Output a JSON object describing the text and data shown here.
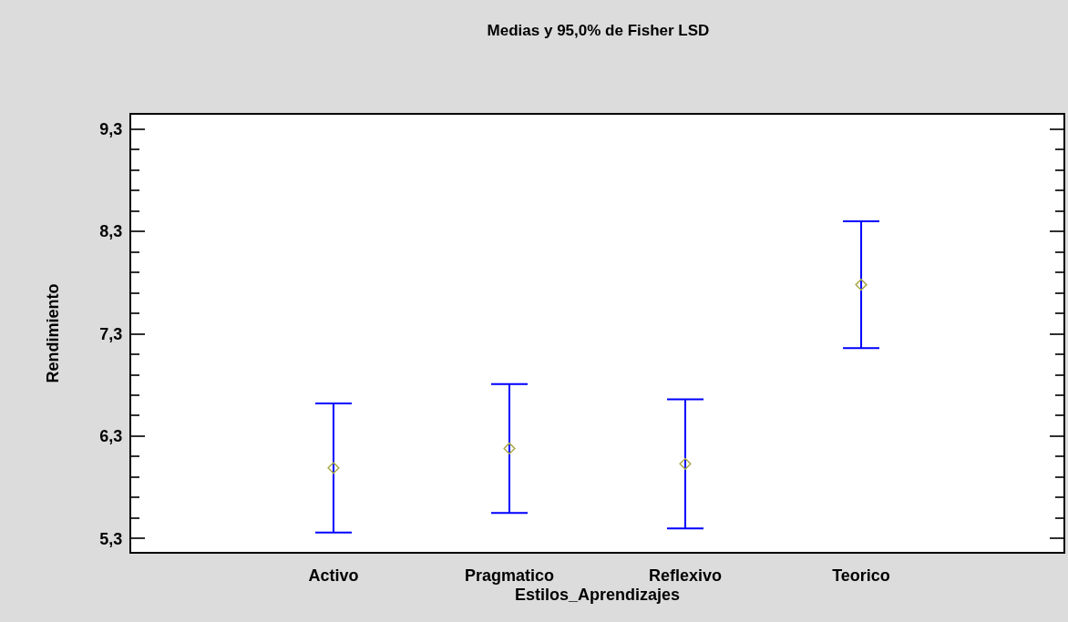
{
  "chart_data": {
    "type": "scatter",
    "title": "Medias y 95,0% de Fisher LSD",
    "xlabel": "Estilos_Aprendizajes",
    "ylabel": "Rendimiento",
    "categories": [
      "Activo",
      "Pragmatico",
      "Reflexivo",
      "Teorico"
    ],
    "values": [
      5.99,
      6.18,
      6.03,
      7.78
    ],
    "errors": [
      0.63,
      0.63,
      0.63,
      0.62
    ],
    "color": "#0000ff",
    "colors": [
      "#a8a84a",
      "#a8a84a",
      "#a8a84a",
      "#a8a84a"
    ],
    "marker": "diamond",
    "ylim": [
      5.17,
      9.44
    ],
    "yticks": [
      {
        "value": 5.3,
        "label": "5,3"
      },
      {
        "value": 5.5,
        "label": null
      },
      {
        "value": 5.7,
        "label": null
      },
      {
        "value": 5.9,
        "label": null
      },
      {
        "value": 6.1,
        "label": null
      },
      {
        "value": 6.3,
        "label": "6,3"
      },
      {
        "value": 6.5,
        "label": null
      },
      {
        "value": 6.7,
        "label": null
      },
      {
        "value": 6.9,
        "label": null
      },
      {
        "value": 7.1,
        "label": null
      },
      {
        "value": 7.3,
        "label": "7,3"
      },
      {
        "value": 7.5,
        "label": null
      },
      {
        "value": 7.7,
        "label": null
      },
      {
        "value": 7.9,
        "label": null
      },
      {
        "value": 8.1,
        "label": null
      },
      {
        "value": 8.3,
        "label": "8,3"
      },
      {
        "value": 8.5,
        "label": null
      },
      {
        "value": 8.7,
        "label": null
      },
      {
        "value": 8.9,
        "label": null
      },
      {
        "value": 9.1,
        "label": null
      },
      {
        "value": 9.3,
        "label": "9,3"
      }
    ]
  }
}
